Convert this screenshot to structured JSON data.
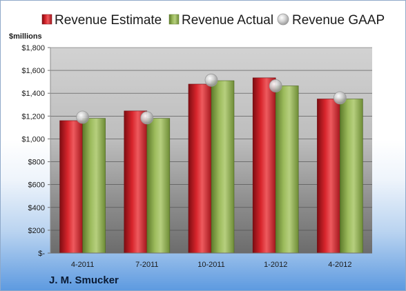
{
  "company_name": "J. M. Smucker",
  "colors": {
    "estimate": "#c8202a",
    "actual": "#8fab4f",
    "gaap": "#b8b8b8"
  },
  "chart_data": {
    "type": "bar",
    "title": "",
    "xlabel": "",
    "ylabel": "$millions",
    "ylim": [
      0,
      1800
    ],
    "yticks": [
      0,
      200,
      400,
      600,
      800,
      1000,
      1200,
      1400,
      1600,
      1800
    ],
    "ytick_labels": [
      "$-",
      "$200",
      "$400",
      "$600",
      "$800",
      "$1,000",
      "$1,200",
      "$1,400",
      "$1,600",
      "$1,800"
    ],
    "categories": [
      "4-2011",
      "7-2011",
      "10-2011",
      "1-2012",
      "4-2012"
    ],
    "series": [
      {
        "name": "Revenue Estimate",
        "kind": "bar",
        "values": [
          1160,
          1245,
          1480,
          1535,
          1350
        ]
      },
      {
        "name": "Revenue Actual",
        "kind": "bar",
        "values": [
          1180,
          1180,
          1510,
          1465,
          1350
        ]
      },
      {
        "name": "Revenue GAAP",
        "kind": "marker",
        "values": [
          1190,
          1185,
          1515,
          1465,
          1360
        ]
      }
    ],
    "grid": true,
    "legend": "top"
  }
}
